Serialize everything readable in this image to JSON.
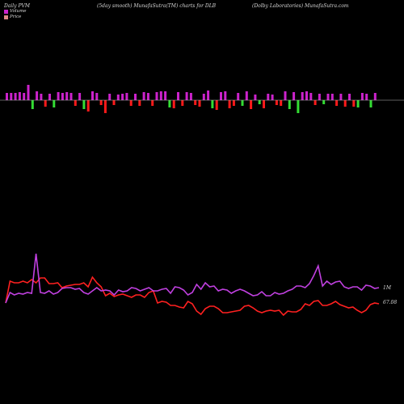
{
  "header": {
    "left": "Daily PVM",
    "center": "(5day smooth) MunafaSutra(TM) charts for DLB",
    "right": "(Dolby Laboratories) MunafaSutra.com"
  },
  "legend": [
    {
      "label": "Volume",
      "color": "#cc22cc"
    },
    {
      "label": "Price",
      "color": "#dd8888"
    }
  ],
  "colors": {
    "up": "#cc22cc",
    "down_red": "#ff1a1a",
    "down_green": "#33dd33",
    "price_line": "#ff2020",
    "volume_line": "#c040e0",
    "baseline": "#bbbbbb"
  },
  "chart_data": {
    "type": "line",
    "labels": {
      "volume_end": "1M",
      "price_end": "67.08"
    },
    "bars": {
      "values": [
        0.45,
        0.45,
        0.45,
        0.5,
        0.45,
        0.95,
        -0.55,
        0.55,
        0.4,
        -0.4,
        0.4,
        -0.45,
        0.5,
        0.45,
        0.5,
        0.45,
        -0.35,
        0.45,
        -0.55,
        -0.7,
        0.55,
        0.45,
        -0.3,
        -0.8,
        0.4,
        -0.3,
        0.35,
        0.4,
        0.45,
        -0.35,
        0.4,
        -0.35,
        0.5,
        0.45,
        -0.35,
        0.5,
        0.55,
        0.55,
        -0.45,
        -0.5,
        0.5,
        -0.35,
        0.5,
        0.45,
        -0.3,
        -0.4,
        0.4,
        0.6,
        -0.5,
        -0.6,
        0.5,
        0.55,
        -0.5,
        -0.35,
        0.45,
        -0.35,
        0.55,
        -0.55,
        0.35,
        -0.25,
        -0.5,
        0.4,
        0.35,
        -0.3,
        -0.35,
        0.55,
        -0.55,
        0.5,
        -0.8,
        0.5,
        0.55,
        0.45,
        -0.3,
        0.4,
        -0.25,
        0.4,
        0.4,
        -0.35,
        0.4,
        -0.4,
        0.4,
        -0.4,
        -0.45,
        0.45,
        0.4,
        -0.45,
        0.45
      ],
      "colors": [
        "up",
        "up",
        "up",
        "up",
        "up",
        "up",
        "down_green",
        "up",
        "up",
        "down_red",
        "up",
        "down_green",
        "up",
        "up",
        "up",
        "up",
        "down_red",
        "up",
        "down_green",
        "down_red",
        "up",
        "up",
        "down_red",
        "down_red",
        "up",
        "down_red",
        "up",
        "up",
        "up",
        "down_red",
        "up",
        "down_red",
        "up",
        "up",
        "down_red",
        "up",
        "up",
        "up",
        "down_green",
        "down_red",
        "up",
        "down_red",
        "up",
        "up",
        "down_red",
        "down_red",
        "up",
        "up",
        "down_green",
        "down_red",
        "up",
        "up",
        "down_red",
        "down_red",
        "up",
        "down_green",
        "up",
        "down_red",
        "up",
        "down_green",
        "down_red",
        "up",
        "up",
        "down_red",
        "down_red",
        "up",
        "down_green",
        "up",
        "down_green",
        "up",
        "up",
        "up",
        "down_red",
        "up",
        "down_green",
        "up",
        "up",
        "down_red",
        "up",
        "down_red",
        "up",
        "down_red",
        "down_green",
        "up",
        "up",
        "down_green",
        "up"
      ]
    },
    "price": [
      375,
      348,
      350,
      350,
      348,
      350,
      346,
      350,
      344,
      344,
      351,
      351,
      350,
      356,
      354,
      353,
      352,
      352,
      350,
      355,
      343,
      350,
      355,
      366,
      363,
      367,
      365,
      364,
      366,
      368,
      365,
      365,
      368,
      362,
      360,
      375,
      373,
      374,
      378,
      378,
      380,
      381,
      373,
      376,
      385,
      389,
      382,
      379,
      379,
      382,
      387,
      387,
      386,
      385,
      384,
      379,
      378,
      381,
      385,
      387,
      385,
      384,
      385,
      384,
      390,
      385,
      386,
      386,
      383,
      376,
      378,
      373,
      372,
      378,
      378,
      376,
      373,
      377,
      379,
      381,
      380,
      384,
      387,
      384,
      377,
      375,
      376
    ],
    "volume": [
      375,
      362,
      365,
      363,
      364,
      362,
      363,
      314,
      362,
      363,
      360,
      364,
      362,
      357,
      356,
      356,
      358,
      357,
      362,
      364,
      360,
      356,
      360,
      359,
      360,
      365,
      359,
      361,
      360,
      356,
      357,
      360,
      358,
      356,
      360,
      360,
      358,
      357,
      363,
      355,
      356,
      359,
      365,
      362,
      352,
      358,
      350,
      355,
      354,
      360,
      358,
      359,
      363,
      360,
      358,
      360,
      363,
      366,
      365,
      361,
      366,
      366,
      362,
      364,
      363,
      360,
      358,
      354,
      354,
      356,
      351,
      341,
      329,
      354,
      348,
      352,
      349,
      348,
      355,
      357,
      355,
      355,
      359,
      353,
      354,
      357,
      356
    ]
  }
}
